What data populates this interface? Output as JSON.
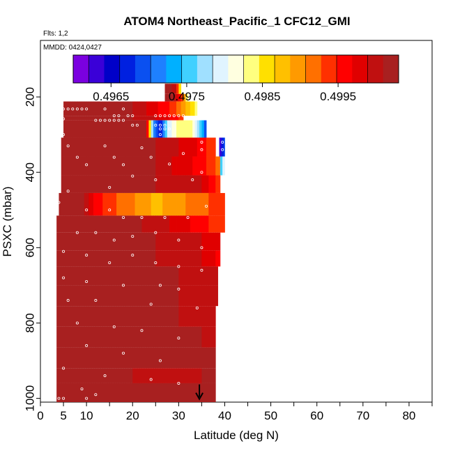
{
  "chart_data": {
    "type": "heatmap",
    "title": "ATOM4 Northeast_Pacific_1 CFC12_GMI",
    "annotations": [
      "Flts: 1,2",
      "MMDD: 0424,0427"
    ],
    "xlabel": "Latitude (deg N)",
    "ylabel": "PSXC (mbar)",
    "xlim": [
      0,
      85
    ],
    "ylim": [
      1010,
      50
    ],
    "x_ticks": [
      0,
      5,
      10,
      20,
      30,
      40,
      50,
      60,
      70,
      80
    ],
    "y_ticks": [
      200,
      400,
      600,
      800,
      1000
    ],
    "colorbar": {
      "range": [
        0.496,
        0.5003
      ],
      "ticks": [
        0.4965,
        0.4975,
        0.4985,
        0.4995
      ],
      "tick_labels": [
        "0.4965",
        "0.4975",
        "0.4985",
        "0.4995"
      ],
      "colors": [
        "#7b00e0",
        "#3a00d8",
        "#0000c8",
        "#0020e0",
        "#0a50f0",
        "#1e80ff",
        "#00b0ff",
        "#40d0ff",
        "#a0e0ff",
        "#e0f4ff",
        "#ffffe0",
        "#ffff80",
        "#ffe000",
        "#ffc000",
        "#ff9a00",
        "#ff7000",
        "#ff3000",
        "#ff0000",
        "#e00000",
        "#c01010",
        "#a82020"
      ]
    },
    "grid": false,
    "bands": [
      {
        "p0": 165,
        "p1": 192,
        "lat_min": 27,
        "lat_max": 30.5,
        "x": [
          27,
          28.5,
          29.5,
          30.5
        ],
        "values": [
          0.5002,
          0.5001,
          0.4999,
          0.4982
        ]
      },
      {
        "p0": 192,
        "p1": 212,
        "lat_min": 27,
        "lat_max": 32,
        "x": [
          27,
          29,
          30.5,
          32
        ],
        "values": [
          0.5002,
          0.5001,
          0.4996,
          0.4982
        ]
      },
      {
        "p0": 212,
        "p1": 250,
        "lat_min": 5,
        "lat_max": 34,
        "x": [
          5,
          15,
          20,
          24,
          28,
          31,
          34
        ],
        "values": [
          0.5002,
          0.5002,
          0.5001,
          0.4998,
          0.4995,
          0.499,
          0.4983
        ]
      },
      {
        "p0": 250,
        "p1": 262,
        "lat_min": 5,
        "lat_max": 31,
        "x": [
          5,
          15,
          20,
          25,
          28,
          31
        ],
        "values": [
          0.5002,
          0.5002,
          0.5001,
          0.4999,
          0.4997,
          0.4994
        ]
      },
      {
        "p0": 262,
        "p1": 308,
        "lat_min": 5,
        "lat_max": 36,
        "x": [
          5,
          15,
          20,
          23,
          24.5,
          26,
          27.5,
          30,
          33,
          35,
          36
        ],
        "values": [
          0.5002,
          0.5002,
          0.5002,
          0.5001,
          0.4972,
          0.4966,
          0.4978,
          0.4984,
          0.4983,
          0.4975,
          0.4966
        ]
      },
      {
        "p0": 308,
        "p1": 358,
        "lat_min": 4.5,
        "lat_max": 38,
        "x": [
          4.5,
          15,
          20,
          25,
          30,
          34,
          36,
          38
        ],
        "values": [
          0.5002,
          0.5002,
          0.5002,
          0.5001,
          0.4999,
          0.4997,
          0.4995,
          0.4993
        ]
      },
      {
        "p0": 308,
        "p1": 358,
        "lat_min": 38.8,
        "lat_max": 40,
        "x": [
          38.8,
          40
        ],
        "values": [
          0.4962,
          0.497
        ]
      },
      {
        "p0": 358,
        "p1": 408,
        "lat_min": 4.5,
        "lat_max": 39,
        "x": [
          4.5,
          15,
          20,
          25,
          30,
          35,
          37,
          39
        ],
        "values": [
          0.5002,
          0.5002,
          0.5002,
          0.5001,
          0.4998,
          0.4996,
          0.4994,
          0.4992
        ]
      },
      {
        "p0": 358,
        "p1": 408,
        "lat_min": 39,
        "lat_max": 40,
        "x": [
          39,
          40
        ],
        "values": [
          0.4975,
          0.498
        ]
      },
      {
        "p0": 408,
        "p1": 455,
        "lat_min": 4.5,
        "lat_max": 39,
        "x": [
          4.5,
          15,
          20,
          25,
          30,
          35,
          39
        ],
        "values": [
          0.5002,
          0.5002,
          0.5002,
          0.5001,
          0.5,
          0.4999,
          0.4993
        ]
      },
      {
        "p0": 455,
        "p1": 515,
        "lat_min": 4,
        "lat_max": 40,
        "x": [
          4,
          9,
          12,
          16,
          20,
          25,
          30,
          34,
          37,
          40
        ],
        "values": [
          0.5002,
          0.5002,
          0.4996,
          0.4993,
          0.4991,
          0.4988,
          0.499,
          0.4992,
          0.4993,
          0.4994
        ]
      },
      {
        "p0": 515,
        "p1": 560,
        "lat_min": 3.5,
        "lat_max": 40,
        "x": [
          3.5,
          15,
          22,
          28,
          34,
          38,
          40
        ],
        "values": [
          0.5002,
          0.5002,
          0.5001,
          0.4999,
          0.4996,
          0.4994,
          0.4993
        ]
      },
      {
        "p0": 560,
        "p1": 608,
        "lat_min": 3.5,
        "lat_max": 39,
        "x": [
          3.5,
          15,
          20,
          25,
          30,
          35,
          39
        ],
        "values": [
          0.5002,
          0.5002,
          0.5002,
          0.5001,
          0.5,
          0.4999,
          0.4997
        ]
      },
      {
        "p0": 608,
        "p1": 650,
        "lat_min": 3.5,
        "lat_max": 39,
        "x": [
          3.5,
          15,
          20,
          25,
          30,
          35,
          39
        ],
        "values": [
          0.5002,
          0.5002,
          0.5002,
          0.5001,
          0.5,
          0.4999,
          0.4996
        ]
      },
      {
        "p0": 650,
        "p1": 700,
        "lat_min": 3.5,
        "lat_max": 38.5,
        "x": [
          3.5,
          20,
          25,
          30,
          35,
          38.5
        ],
        "values": [
          0.5002,
          0.5002,
          0.5002,
          0.5001,
          0.5,
          0.4999
        ]
      },
      {
        "p0": 700,
        "p1": 755,
        "lat_min": 3.5,
        "lat_max": 38.5,
        "x": [
          3.5,
          20,
          25,
          30,
          35,
          38.5
        ],
        "values": [
          0.5002,
          0.5002,
          0.5002,
          0.5001,
          0.5,
          0.5
        ]
      },
      {
        "p0": 755,
        "p1": 810,
        "lat_min": 3.5,
        "lat_max": 38,
        "x": [
          3.5,
          25,
          30,
          35,
          38
        ],
        "values": [
          0.5002,
          0.5002,
          0.5001,
          0.5,
          0.5
        ]
      },
      {
        "p0": 810,
        "p1": 865,
        "lat_min": 3.5,
        "lat_max": 38,
        "x": [
          3.5,
          25,
          30,
          35,
          38
        ],
        "values": [
          0.5002,
          0.5002,
          0.5001,
          0.5001,
          0.5
        ]
      },
      {
        "p0": 865,
        "p1": 920,
        "lat_min": 3.5,
        "lat_max": 38,
        "x": [
          3.5,
          25,
          30,
          35,
          38
        ],
        "values": [
          0.5002,
          0.5002,
          0.5002,
          0.5001,
          0.5001
        ]
      },
      {
        "p0": 920,
        "p1": 960,
        "lat_min": 3.5,
        "lat_max": 38,
        "x": [
          3.5,
          15,
          20,
          25,
          30,
          35,
          38
        ],
        "values": [
          0.5002,
          0.5002,
          0.5001,
          0.5,
          0.5,
          0.5001,
          0.5001
        ]
      },
      {
        "p0": 960,
        "p1": 1010,
        "lat_min": 3.5,
        "lat_max": 38,
        "x": [
          3.5,
          25,
          30,
          35,
          38
        ],
        "values": [
          0.5002,
          0.5002,
          0.5002,
          0.5002,
          0.5002
        ]
      }
    ],
    "sample_points": [
      [
        5,
        232
      ],
      [
        6,
        232
      ],
      [
        7,
        232
      ],
      [
        8,
        232
      ],
      [
        9,
        232
      ],
      [
        10,
        232
      ],
      [
        14,
        232
      ],
      [
        18,
        232
      ],
      [
        16,
        250
      ],
      [
        17,
        250
      ],
      [
        19,
        250
      ],
      [
        20,
        250
      ],
      [
        25,
        250
      ],
      [
        26,
        250
      ],
      [
        27,
        250
      ],
      [
        28,
        250
      ],
      [
        29,
        250
      ],
      [
        30,
        250
      ],
      [
        31,
        250
      ],
      [
        5,
        258
      ],
      [
        12,
        262
      ],
      [
        13,
        262
      ],
      [
        14,
        262
      ],
      [
        15,
        262
      ],
      [
        16,
        262
      ],
      [
        17,
        262
      ],
      [
        18,
        262
      ],
      [
        20,
        275
      ],
      [
        21,
        275
      ],
      [
        25,
        275
      ],
      [
        26,
        275
      ],
      [
        27,
        275
      ],
      [
        26,
        285
      ],
      [
        27,
        285
      ],
      [
        28,
        285
      ],
      [
        26,
        300
      ],
      [
        35,
        320
      ],
      [
        35,
        340
      ],
      [
        39.5,
        320
      ],
      [
        39.5,
        340
      ],
      [
        5,
        300
      ],
      [
        6,
        330
      ],
      [
        8,
        360
      ],
      [
        10,
        380
      ],
      [
        14,
        330
      ],
      [
        16,
        360
      ],
      [
        18,
        380
      ],
      [
        22,
        335
      ],
      [
        24,
        360
      ],
      [
        28,
        378
      ],
      [
        31,
        350
      ],
      [
        33,
        420
      ],
      [
        35,
        400
      ],
      [
        25,
        420
      ],
      [
        20,
        410
      ],
      [
        15,
        440
      ],
      [
        6,
        450
      ],
      [
        4,
        480
      ],
      [
        10,
        500
      ],
      [
        15,
        500
      ],
      [
        18,
        520
      ],
      [
        22,
        520
      ],
      [
        27,
        520
      ],
      [
        32,
        520
      ],
      [
        36,
        490
      ],
      [
        8,
        560
      ],
      [
        12,
        560
      ],
      [
        16,
        580
      ],
      [
        20,
        570
      ],
      [
        25,
        560
      ],
      [
        30,
        580
      ],
      [
        35,
        600
      ],
      [
        5,
        610
      ],
      [
        10,
        620
      ],
      [
        15,
        640
      ],
      [
        20,
        620
      ],
      [
        25,
        640
      ],
      [
        30,
        650
      ],
      [
        35,
        660
      ],
      [
        5,
        680
      ],
      [
        10,
        690
      ],
      [
        18,
        700
      ],
      [
        26,
        700
      ],
      [
        30,
        710
      ],
      [
        6,
        740
      ],
      [
        12,
        740
      ],
      [
        24,
        750
      ],
      [
        34,
        760
      ],
      [
        8,
        800
      ],
      [
        16,
        810
      ],
      [
        22,
        820
      ],
      [
        30,
        840
      ],
      [
        10,
        860
      ],
      [
        18,
        880
      ],
      [
        26,
        900
      ],
      [
        5,
        920
      ],
      [
        14,
        940
      ],
      [
        24,
        950
      ],
      [
        30,
        960
      ],
      [
        9,
        975
      ],
      [
        12,
        990
      ],
      [
        4,
        1000
      ],
      [
        5,
        1000
      ],
      [
        10,
        1000
      ]
    ],
    "marker": {
      "lat": 34.5,
      "p": 1000,
      "symbol": "arrow-down"
    }
  }
}
